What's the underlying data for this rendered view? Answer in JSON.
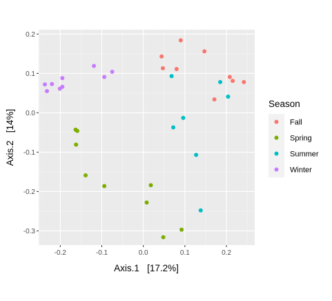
{
  "chart_data": {
    "type": "scatter",
    "xlabel": "Axis.1   [17.2%]",
    "ylabel": "Axis.2   [14%]",
    "xlim": [
      -0.252,
      0.268
    ],
    "ylim": [
      -0.336,
      0.211
    ],
    "x_ticks": [
      -0.2,
      -0.1,
      0.0,
      0.1,
      0.2
    ],
    "x_tick_labels": [
      "-0.2",
      "-0.1",
      "0.0",
      "0.1",
      "0.2"
    ],
    "y_ticks": [
      -0.3,
      -0.2,
      -0.1,
      0.0,
      0.1,
      0.2
    ],
    "y_tick_labels": [
      "-0.3",
      "-0.2",
      "-0.1",
      "0.0",
      "0.1",
      "0.2"
    ],
    "grid": true,
    "legend": {
      "title": "Season",
      "placement": "right"
    },
    "series": [
      {
        "name": "Fall",
        "color": "#F8766D",
        "points": [
          {
            "x": 0.09,
            "y": 0.184
          },
          {
            "x": 0.147,
            "y": 0.156
          },
          {
            "x": 0.044,
            "y": 0.143
          },
          {
            "x": 0.047,
            "y": 0.113
          },
          {
            "x": 0.08,
            "y": 0.111
          },
          {
            "x": 0.208,
            "y": 0.091
          },
          {
            "x": 0.215,
            "y": 0.081
          },
          {
            "x": 0.242,
            "y": 0.078
          },
          {
            "x": 0.171,
            "y": 0.034
          }
        ]
      },
      {
        "name": "Spring",
        "color": "#7CAE00",
        "points": [
          {
            "x": -0.163,
            "y": -0.043
          },
          {
            "x": -0.159,
            "y": -0.046
          },
          {
            "x": -0.162,
            "y": -0.081
          },
          {
            "x": -0.139,
            "y": -0.159
          },
          {
            "x": -0.094,
            "y": -0.186
          },
          {
            "x": 0.018,
            "y": -0.184
          },
          {
            "x": 0.008,
            "y": -0.228
          },
          {
            "x": 0.092,
            "y": -0.297
          },
          {
            "x": 0.048,
            "y": -0.316
          }
        ]
      },
      {
        "name": "Summer",
        "color": "#00BFC4",
        "points": [
          {
            "x": 0.068,
            "y": 0.093
          },
          {
            "x": 0.185,
            "y": 0.078
          },
          {
            "x": 0.204,
            "y": 0.041
          },
          {
            "x": 0.096,
            "y": -0.013
          },
          {
            "x": 0.072,
            "y": -0.037
          },
          {
            "x": 0.127,
            "y": -0.107
          },
          {
            "x": 0.138,
            "y": -0.248
          }
        ]
      },
      {
        "name": "Winter",
        "color": "#C77CFF",
        "points": [
          {
            "x": -0.119,
            "y": 0.119
          },
          {
            "x": -0.075,
            "y": 0.104
          },
          {
            "x": -0.094,
            "y": 0.091
          },
          {
            "x": -0.195,
            "y": 0.088
          },
          {
            "x": -0.237,
            "y": 0.072
          },
          {
            "x": -0.22,
            "y": 0.073
          },
          {
            "x": -0.195,
            "y": 0.066
          },
          {
            "x": -0.201,
            "y": 0.061
          },
          {
            "x": -0.232,
            "y": 0.055
          }
        ]
      }
    ]
  }
}
